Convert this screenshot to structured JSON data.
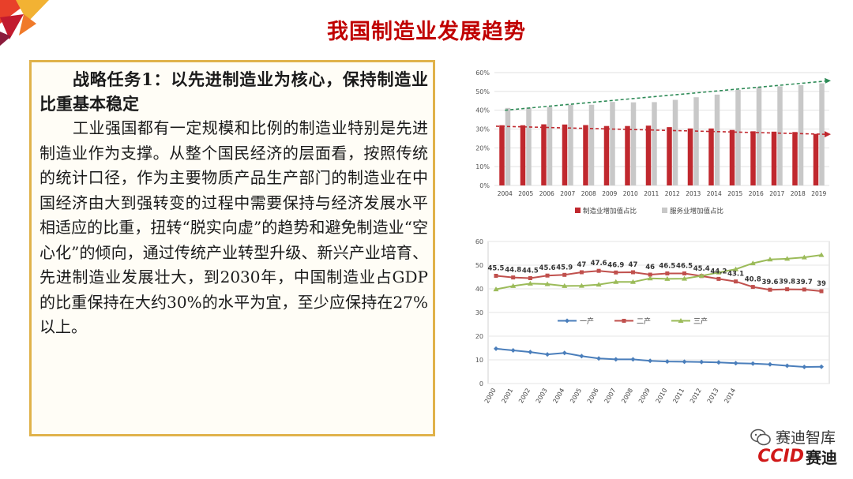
{
  "header": {
    "title": "我国制造业发展趋势"
  },
  "textbox": {
    "heading": "战略任务1：以先进制造业为核心，保持制造业比重基本稳定",
    "body": "工业强国都有一定规模和比例的制造业特别是先进制造业作为支撑。从整个国民经济的层面看，按照传统的统计口径，作为主要物质产品生产部门的制造业在中国经济由大到强转变的过程中需要保持与经济发展水平相适应的比重，扭转“脱实向虚”的趋势和避免制造业“空心化”的倾向，通过传统产业转型升级、新兴产业培育、先进制造业发展壮大，到2030年，中国制造业占GDP的比重保持在大约30%的水平为宜，至少应保持在27%以上。"
  },
  "branding": {
    "wechat": "赛迪智库",
    "logo_text": "CCID",
    "logo_cn": "赛迪"
  },
  "colors": {
    "title": "#c00000",
    "border": "#e0b24a",
    "bar_red": "#c0282e",
    "bar_gray": "#c8c8c8",
    "trend_green": "#2e8b57",
    "trend_red": "#c0282e",
    "line_blue": "#4a7ebb",
    "line_red": "#c0504d",
    "line_green": "#9bbb59"
  },
  "chart_data": [
    {
      "type": "bar",
      "categories": [
        "2004",
        "2005",
        "2006",
        "2007",
        "2008",
        "2009",
        "2010",
        "2011",
        "2012",
        "2013",
        "2014",
        "2015",
        "2016",
        "2017",
        "2018",
        "2019"
      ],
      "series": [
        {
          "name": "制造业增加值占比",
          "values": [
            32.0,
            32.0,
            32.5,
            32.4,
            32.1,
            31.6,
            31.6,
            31.8,
            31.0,
            30.3,
            30.3,
            29.5,
            28.8,
            28.6,
            28.4,
            27.4
          ]
        },
        {
          "name": "服务业增加值占比",
          "values": [
            41.2,
            41.4,
            41.8,
            42.9,
            42.9,
            44.4,
            44.2,
            44.3,
            45.5,
            46.9,
            48.3,
            50.8,
            52.4,
            52.7,
            53.3,
            54.3
          ]
        }
      ],
      "ylim": [
        0,
        60
      ],
      "yticks": [
        "0%",
        "10%",
        "20%",
        "30%",
        "40%",
        "50%",
        "60%"
      ],
      "trendlines": [
        {
          "color": "green",
          "from": 40,
          "to": 55.5
        },
        {
          "color": "red",
          "from": 31.5,
          "to": 27.2
        }
      ],
      "legend": "bottom"
    },
    {
      "type": "line",
      "x": [
        "2000",
        "2001",
        "2002",
        "2003",
        "2004",
        "2005",
        "2006",
        "2007",
        "2008",
        "2009",
        "2010",
        "2011",
        "2012",
        "2013",
        "2014",
        "2015",
        "2016",
        "2017",
        "2018",
        "2019"
      ],
      "x_labels_shown": [
        "2000",
        "2001",
        "2002",
        "2003",
        "2004",
        "2005",
        "2006",
        "2007",
        "2008",
        "2009",
        "2010",
        "2011",
        "2012",
        "2013",
        "2014",
        "",
        "",
        "",
        "",
        ""
      ],
      "series": [
        {
          "name": "一产",
          "values": [
            14.7,
            14.0,
            13.3,
            12.3,
            12.9,
            11.6,
            10.6,
            10.2,
            10.2,
            9.6,
            9.3,
            9.2,
            9.1,
            8.9,
            8.6,
            8.4,
            8.1,
            7.5,
            7.0,
            7.1
          ]
        },
        {
          "name": "二产",
          "values": [
            45.5,
            44.8,
            44.5,
            45.6,
            45.9,
            47,
            47.6,
            46.9,
            47,
            46,
            46.5,
            46.5,
            45.4,
            44.2,
            43.1,
            40.8,
            39.6,
            39.8,
            39.7,
            39
          ]
        },
        {
          "name": "三产",
          "values": [
            39.8,
            41.2,
            42.2,
            42.0,
            41.2,
            41.3,
            41.8,
            42.9,
            42.9,
            44.4,
            44.2,
            44.3,
            45.5,
            46.9,
            48.3,
            50.8,
            52.4,
            52.7,
            53.3,
            54.3
          ]
        }
      ],
      "data_labels_series2": [
        "45.5",
        "44.8",
        "44.5",
        "45.6",
        "45.9",
        "47",
        "47.6",
        "46.9",
        "47",
        "46",
        "46.5",
        "46.5",
        "45.4",
        "44.2",
        "43.1",
        "40.8",
        "39.6",
        "39.8",
        "39.7",
        "39"
      ],
      "ylim": [
        0,
        60
      ],
      "yticks": [
        "0",
        "10",
        "20",
        "30",
        "40",
        "50",
        "60"
      ],
      "legend": "inside-middle"
    }
  ]
}
